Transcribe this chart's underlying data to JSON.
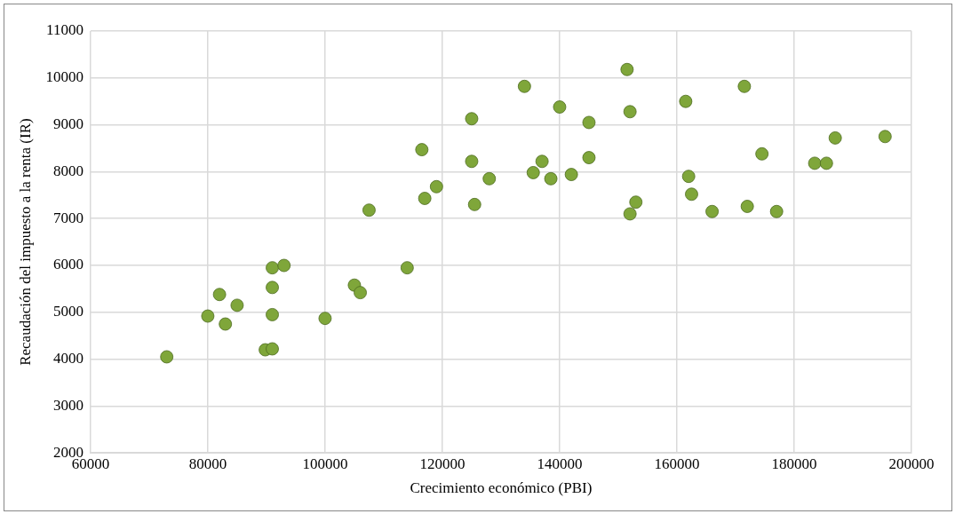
{
  "chart_data": {
    "type": "scatter",
    "xlabel": "Crecimiento económico (PBI)",
    "ylabel": "Recaudación del impuesto a la renta (IR)",
    "xlim": [
      60000,
      200000
    ],
    "xticks": [
      60000,
      80000,
      100000,
      120000,
      140000,
      160000,
      180000,
      200000
    ],
    "ylim": [
      2000,
      11000
    ],
    "yticks": [
      2000,
      3000,
      4000,
      5000,
      6000,
      7000,
      8000,
      9000,
      10000,
      11000
    ],
    "grid": true,
    "marker": "circle",
    "legend": false,
    "series": [
      {
        "color": "#7fa63a",
        "x": [
          73000,
          80000,
          82000,
          83000,
          85000,
          89800,
          91000,
          91000,
          91000,
          91000,
          93000,
          100000,
          105000,
          106000,
          107500,
          114000,
          117000,
          116500,
          119000,
          125000,
          125000,
          125500,
          128000,
          134000,
          135500,
          137000,
          138500,
          140000,
          142000,
          145000,
          145000,
          151500,
          152000,
          152000,
          153000,
          161500,
          162000,
          162500,
          166000,
          171500,
          172000,
          174500,
          177000,
          183500,
          185500,
          187000,
          195500
        ],
        "values": [
          4050,
          4920,
          5380,
          4750,
          5150,
          4200,
          4220,
          4950,
          5530,
          5950,
          6000,
          4870,
          5580,
          5420,
          7180,
          5950,
          7430,
          8470,
          7680,
          9130,
          8220,
          7300,
          7850,
          9820,
          7980,
          8220,
          7850,
          9380,
          7940,
          9050,
          8300,
          10180,
          9280,
          7100,
          7350,
          9500,
          7900,
          7520,
          7150,
          9820,
          7260,
          8380,
          7150,
          8180,
          8180,
          8720,
          8750
        ]
      }
    ]
  }
}
